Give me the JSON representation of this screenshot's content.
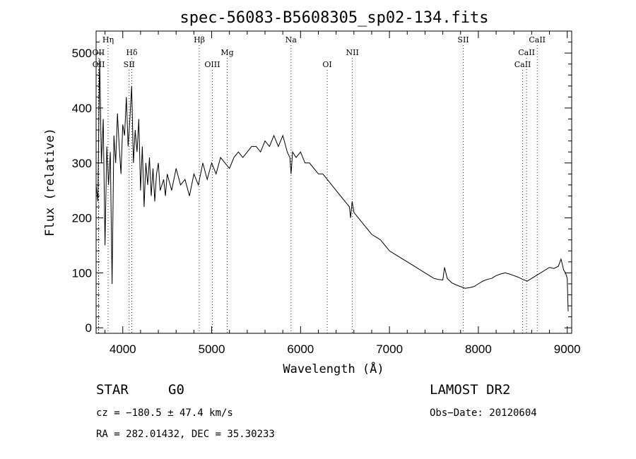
{
  "chart_data": {
    "type": "line",
    "title": "spec-56083-B5608305_sp02-134.fits",
    "xlabel": "Wavelength (Å)",
    "ylabel": "Flux (relative)",
    "xlim": [
      3700,
      9050
    ],
    "ylim": [
      -10,
      540
    ],
    "xticks": [
      4000,
      5000,
      6000,
      7000,
      8000,
      9000
    ],
    "yticks": [
      0,
      100,
      200,
      300,
      400,
      500
    ],
    "xtick_labels": [
      "4000",
      "5000",
      "6000",
      "7000",
      "8000",
      "9000"
    ],
    "ytick_labels": [
      "0",
      "100",
      "200",
      "300",
      "400",
      "500"
    ],
    "grid": false,
    "series": [
      {
        "x": [
          3700,
          3720,
          3740,
          3760,
          3780,
          3800,
          3820,
          3840,
          3860,
          3880,
          3900,
          3920,
          3940,
          3960,
          3980,
          4000,
          4020,
          4040,
          4060,
          4080,
          4100,
          4120,
          4140,
          4160,
          4180,
          4200,
          4220,
          4240,
          4260,
          4280,
          4300,
          4320,
          4340,
          4360,
          4380,
          4400,
          4420,
          4440,
          4460,
          4480,
          4500,
          4550,
          4600,
          4650,
          4700,
          4750,
          4800,
          4850,
          4900,
          4950,
          5000,
          5050,
          5100,
          5150,
          5200,
          5250,
          5300,
          5350,
          5400,
          5450,
          5500,
          5550,
          5600,
          5650,
          5700,
          5750,
          5800,
          5850,
          5880,
          5893,
          5910,
          5950,
          6000,
          6050,
          6100,
          6150,
          6200,
          6250,
          6300,
          6350,
          6400,
          6450,
          6500,
          6550,
          6563,
          6580,
          6600,
          6650,
          6700,
          6750,
          6800,
          6850,
          6900,
          6950,
          7000,
          7050,
          7100,
          7150,
          7200,
          7250,
          7300,
          7350,
          7400,
          7450,
          7500,
          7550,
          7600,
          7620,
          7650,
          7700,
          7750,
          7800,
          7850,
          7900,
          7950,
          8000,
          8050,
          8100,
          8150,
          8200,
          8250,
          8300,
          8350,
          8400,
          8450,
          8500,
          8550,
          8600,
          8650,
          8700,
          8750,
          8800,
          8850,
          8900,
          8930,
          8960,
          8980,
          9000,
          9010
        ],
        "y": [
          260,
          230,
          490,
          300,
          380,
          150,
          330,
          260,
          320,
          80,
          350,
          300,
          390,
          330,
          280,
          370,
          350,
          420,
          330,
          380,
          440,
          300,
          360,
          320,
          380,
          250,
          330,
          220,
          300,
          260,
          310,
          240,
          290,
          230,
          280,
          300,
          250,
          260,
          270,
          240,
          280,
          250,
          290,
          260,
          270,
          240,
          280,
          260,
          300,
          270,
          300,
          280,
          310,
          300,
          290,
          310,
          320,
          310,
          320,
          330,
          330,
          320,
          340,
          330,
          350,
          330,
          350,
          320,
          310,
          280,
          320,
          310,
          320,
          300,
          300,
          290,
          280,
          280,
          270,
          260,
          250,
          240,
          230,
          220,
          200,
          230,
          210,
          200,
          190,
          180,
          170,
          165,
          160,
          150,
          140,
          135,
          130,
          125,
          120,
          115,
          110,
          105,
          100,
          95,
          90,
          88,
          87,
          110,
          90,
          82,
          78,
          75,
          72,
          73,
          75,
          80,
          85,
          88,
          90,
          95,
          98,
          100,
          98,
          95,
          92,
          88,
          85,
          90,
          95,
          100,
          105,
          110,
          108,
          112,
          125,
          105,
          100,
          90,
          30
        ]
      }
    ],
    "spectral_lines": [
      {
        "label": "Hη",
        "wavelength": 3835,
        "row": 0
      },
      {
        "label": "OII",
        "wavelength": 3727,
        "row": 1
      },
      {
        "label": "OII",
        "wavelength": 3729,
        "row": 2
      },
      {
        "label": "Hδ",
        "wavelength": 4102,
        "row": 1
      },
      {
        "label": "SII",
        "wavelength": 4072,
        "row": 2
      },
      {
        "label": "Hβ",
        "wavelength": 4861,
        "row": 0
      },
      {
        "label": "OIII",
        "wavelength": 5007,
        "row": 2
      },
      {
        "label": "Mg",
        "wavelength": 5175,
        "row": 1
      },
      {
        "label": "Na",
        "wavelength": 5893,
        "row": 0
      },
      {
        "label": "OI",
        "wavelength": 6300,
        "row": 2
      },
      {
        "label": "NII",
        "wavelength": 6583,
        "row": 1
      },
      {
        "label": "SII",
        "wavelength": 7830,
        "row": 0
      },
      {
        "label": "CaII",
        "wavelength": 8662,
        "row": 0
      },
      {
        "label": "CaII",
        "wavelength": 8542,
        "row": 1
      },
      {
        "label": "CaII",
        "wavelength": 8498,
        "row": 2
      }
    ]
  },
  "info": {
    "class_type": "STAR",
    "subclass": "G0",
    "survey": "LAMOST DR2",
    "cz": "cz = −180.5 ± 47.4 km/s",
    "obs_date": "Obs−Date: 20120604",
    "coords": "RA = 282.01432, DEC =  35.30233"
  }
}
